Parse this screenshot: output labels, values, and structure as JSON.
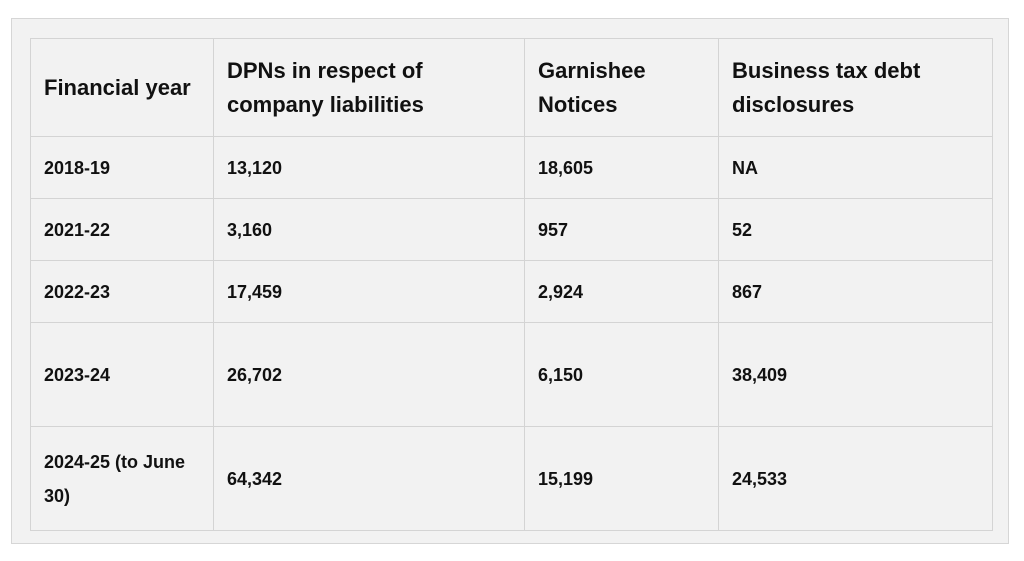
{
  "table": {
    "headers": [
      "Financial year",
      "DPNs in respect of company liabilities",
      "Garnishee Notices",
      "Business tax debt disclosures"
    ],
    "rows": [
      [
        "2018-19",
        "13,120",
        "18,605",
        "NA"
      ],
      [
        "2021-22",
        "3,160",
        "957",
        "52"
      ],
      [
        "2022-23",
        "17,459",
        "2,924",
        "867"
      ],
      [
        "2023-24",
        "26,702",
        "6,150",
        "38,409"
      ],
      [
        "2024-25 (to June 30)",
        "64,342",
        "15,199",
        "24,533"
      ]
    ]
  }
}
